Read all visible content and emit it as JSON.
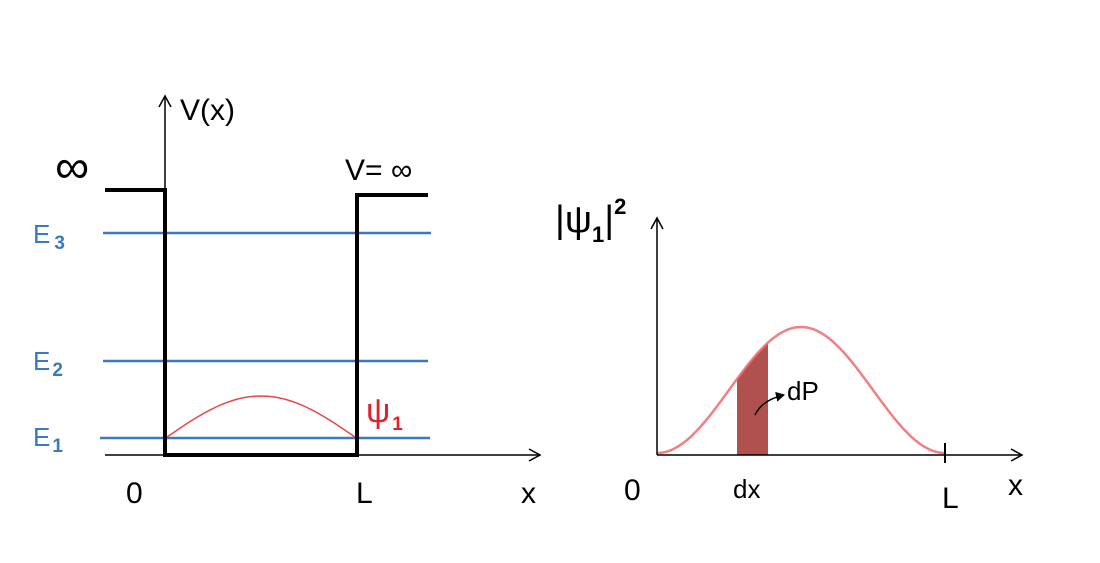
{
  "left_panel": {
    "y_axis_label": "V(x)",
    "x_axis_label": "x",
    "infinity_left": "∞",
    "infinity_right": "V= ∞",
    "origin": "0",
    "well_edge": "L",
    "levels": [
      {
        "letter": "E",
        "sub": "3"
      },
      {
        "letter": "E",
        "sub": "2"
      },
      {
        "letter": "E",
        "sub": "1"
      }
    ],
    "wavefunction": {
      "letter": "ψ",
      "sub": "1"
    }
  },
  "right_panel": {
    "y_axis_label": {
      "open": "|ψ",
      "sub": "1",
      "close": "|",
      "sup": "2"
    },
    "x_axis_label": "x",
    "origin": "0",
    "well_edge": "L",
    "width_label": "dx",
    "probability_label": "dP"
  }
}
